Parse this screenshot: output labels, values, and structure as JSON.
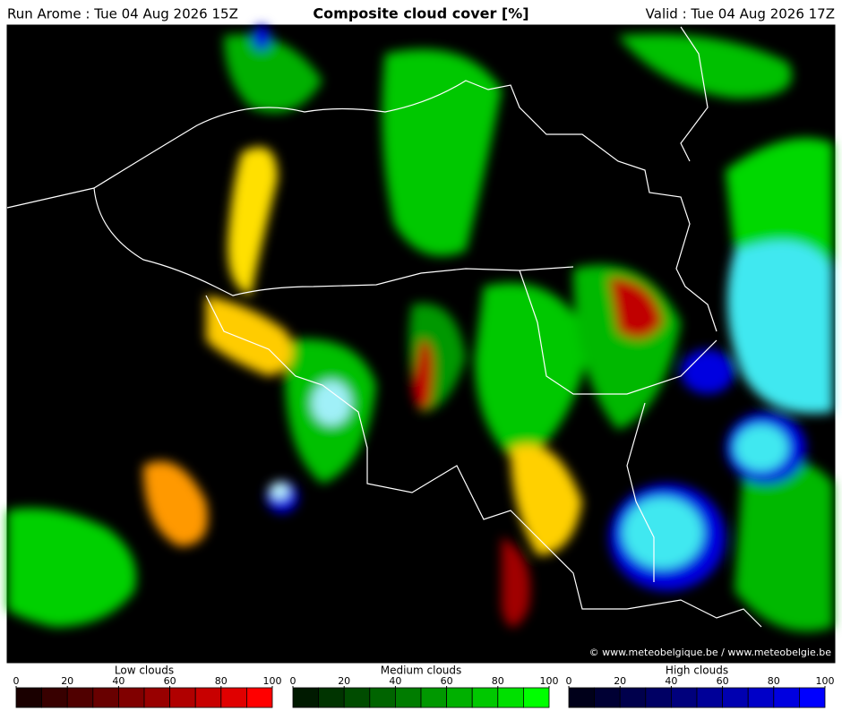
{
  "header": {
    "run": "Run Arome : Tue 04 Aug 2026 15Z",
    "title": "Composite cloud cover [%]",
    "valid": "Valid : Tue 04 Aug 2026 17Z"
  },
  "credit": "© www.meteobelgique.be / www.meteobelgie.be",
  "legends": [
    {
      "label": "Low clouds",
      "ticks": [
        0,
        20,
        40,
        60,
        80,
        100
      ],
      "range": [
        0,
        100
      ],
      "colors": [
        "#1a0000",
        "#380000",
        "#500000",
        "#680000",
        "#800000",
        "#980000",
        "#b00000",
        "#c80000",
        "#e00000",
        "#ff0000"
      ]
    },
    {
      "label": "Medium clouds",
      "ticks": [
        0,
        20,
        40,
        60,
        80,
        100
      ],
      "range": [
        0,
        100
      ],
      "colors": [
        "#001a00",
        "#003400",
        "#004c00",
        "#006400",
        "#007c00",
        "#009800",
        "#00b000",
        "#00c800",
        "#00e000",
        "#00ff00"
      ]
    },
    {
      "label": "High clouds",
      "ticks": [
        0,
        20,
        40,
        60,
        80,
        100
      ],
      "range": [
        0,
        100
      ],
      "colors": [
        "#00001a",
        "#000034",
        "#00004c",
        "#000064",
        "#00007c",
        "#000098",
        "#0000b0",
        "#0000c8",
        "#0000e0",
        "#0000ff"
      ]
    }
  ]
}
